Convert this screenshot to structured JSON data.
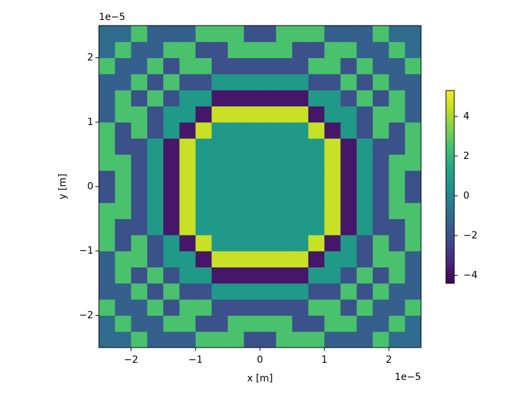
{
  "chart_data": {
    "type": "heatmap",
    "colormap": "viridis",
    "x_label": "x [m]",
    "y_label": "y [m]",
    "x_offset_text": "1e−5",
    "y_offset_text": "1e−5",
    "xlim": [
      -2.5e-05,
      2.5e-05
    ],
    "ylim": [
      -2.5e-05,
      2.5e-05
    ],
    "xticks": [
      {
        "value": -2e-05,
        "label": "−2"
      },
      {
        "value": -1e-05,
        "label": "−1"
      },
      0,
      {
        "value": 1e-05,
        "label": "1"
      },
      {
        "value": 2e-05,
        "label": "2"
      }
    ],
    "yticks": [
      {
        "value": -2e-05,
        "label": "−2"
      },
      {
        "value": -1e-05,
        "label": "−1"
      },
      0,
      {
        "value": 1e-05,
        "label": "1"
      },
      {
        "value": 2e-05,
        "label": "2"
      }
    ],
    "clim": [
      -4.4,
      5.3
    ],
    "cticks": [
      {
        "value": -4,
        "label": "−4"
      },
      {
        "value": -2,
        "label": "−2"
      },
      0,
      2,
      4
    ],
    "x": [
      -2.375e-05,
      -2.125e-05,
      -1.875e-05,
      -1.625e-05,
      -1.375e-05,
      -1.125e-05,
      -8.75e-06,
      -6.25e-06,
      -3.75e-06,
      -1.25e-06,
      1.25e-06,
      3.75e-06,
      6.25e-06,
      8.75e-06,
      1.125e-05,
      1.375e-05,
      1.625e-05,
      1.875e-05,
      2.125e-05,
      2.375e-05
    ],
    "y": [
      -2.375e-05,
      -2.125e-05,
      -1.875e-05,
      -1.625e-05,
      -1.375e-05,
      -1.125e-05,
      -8.75e-06,
      -6.25e-06,
      -3.75e-06,
      -1.25e-06,
      1.25e-06,
      3.75e-06,
      6.25e-06,
      8.75e-06,
      1.125e-05,
      1.375e-05,
      1.625e-05,
      1.875e-05,
      2.125e-05,
      2.375e-05
    ],
    "z": [
      [
        -1,
        -1,
        2.5,
        -1.5,
        -1.5,
        -1.5,
        2.5,
        2.5,
        2.5,
        -2,
        -2,
        2.5,
        2.5,
        2.5,
        -1.5,
        -1.5,
        -1.5,
        2.5,
        -1,
        -1
      ],
      [
        -1,
        2.5,
        -1.5,
        -1.5,
        2.5,
        2.5,
        -2,
        -2,
        2.5,
        2.5,
        2.5,
        2.5,
        -2,
        -2,
        2.5,
        2.5,
        -1.5,
        -1.5,
        2.5,
        -1
      ],
      [
        2.5,
        -1.5,
        -1.5,
        2.5,
        -2,
        2.5,
        2.5,
        -2,
        -2,
        -2,
        -2,
        -2,
        -2,
        2.5,
        2.5,
        -2,
        2.5,
        -1.5,
        -1.5,
        2.5
      ],
      [
        -1.5,
        -1.5,
        2.5,
        -2,
        2.5,
        -2,
        -2,
        0.8,
        0.8,
        0.8,
        0.8,
        0.8,
        0.8,
        -2,
        -2,
        2.5,
        -2,
        2.5,
        -1.5,
        -1.5
      ],
      [
        -1.5,
        2.5,
        -2,
        2.5,
        -2,
        0.8,
        0.8,
        -3.8,
        -3.8,
        -3.8,
        -3.8,
        -3.8,
        -3.8,
        0.8,
        0.8,
        -2,
        2.5,
        -2,
        2.5,
        -1.5
      ],
      [
        -1.5,
        2.5,
        2.5,
        -2,
        0.8,
        0.8,
        -3.8,
        4.5,
        4.5,
        4.5,
        4.5,
        4.5,
        4.5,
        -3.8,
        0.8,
        0.8,
        -2,
        2.5,
        2.5,
        -1.5
      ],
      [
        2.5,
        -2,
        2.5,
        -2,
        0.8,
        -3.8,
        4.5,
        0.8,
        0.8,
        0.8,
        0.8,
        0.8,
        0.8,
        4.5,
        -3.8,
        0.8,
        -2,
        2.5,
        -2,
        2.5
      ],
      [
        2.5,
        -2,
        -2,
        0.8,
        -3.8,
        4.5,
        0.8,
        0.8,
        0.8,
        0.8,
        0.8,
        0.8,
        0.8,
        0.8,
        4.5,
        -3.8,
        0.8,
        -2,
        -2,
        2.5
      ],
      [
        2.5,
        2.5,
        -2,
        0.8,
        -3.8,
        4.5,
        0.8,
        0.8,
        0.8,
        0.8,
        0.8,
        0.8,
        0.8,
        0.8,
        4.5,
        -3.8,
        0.8,
        -2,
        2.5,
        2.5
      ],
      [
        -2,
        2.5,
        -2,
        0.8,
        -3.8,
        4.5,
        0.8,
        0.8,
        0.8,
        0.8,
        0.8,
        0.8,
        0.8,
        0.8,
        4.5,
        -3.8,
        0.8,
        -2,
        2.5,
        -2
      ],
      [
        -2,
        2.5,
        -2,
        0.8,
        -3.8,
        4.5,
        0.8,
        0.8,
        0.8,
        0.8,
        0.8,
        0.8,
        0.8,
        0.8,
        4.5,
        -3.8,
        0.8,
        -2,
        2.5,
        -2
      ],
      [
        2.5,
        2.5,
        -2,
        0.8,
        -3.8,
        4.5,
        0.8,
        0.8,
        0.8,
        0.8,
        0.8,
        0.8,
        0.8,
        0.8,
        4.5,
        -3.8,
        0.8,
        -2,
        2.5,
        2.5
      ],
      [
        2.5,
        -2,
        -2,
        0.8,
        -3.8,
        4.5,
        0.8,
        0.8,
        0.8,
        0.8,
        0.8,
        0.8,
        0.8,
        0.8,
        4.5,
        -3.8,
        0.8,
        -2,
        -2,
        2.5
      ],
      [
        2.5,
        -2,
        2.5,
        -2,
        0.8,
        -3.8,
        4.5,
        0.8,
        0.8,
        0.8,
        0.8,
        0.8,
        0.8,
        4.5,
        -3.8,
        0.8,
        -2,
        2.5,
        -2,
        2.5
      ],
      [
        -1.5,
        2.5,
        2.5,
        -2,
        0.8,
        0.8,
        -3.8,
        4.5,
        4.5,
        4.5,
        4.5,
        4.5,
        4.5,
        -3.8,
        0.8,
        0.8,
        -2,
        2.5,
        2.5,
        -1.5
      ],
      [
        -1.5,
        2.5,
        -2,
        2.5,
        -2,
        0.8,
        0.8,
        -3.8,
        -3.8,
        -3.8,
        -3.8,
        -3.8,
        -3.8,
        0.8,
        0.8,
        -2,
        2.5,
        -2,
        2.5,
        -1.5
      ],
      [
        -1.5,
        -1.5,
        2.5,
        -2,
        2.5,
        -2,
        -2,
        0.8,
        0.8,
        0.8,
        0.8,
        0.8,
        0.8,
        -2,
        -2,
        2.5,
        -2,
        2.5,
        -1.5,
        -1.5
      ],
      [
        2.5,
        -1.5,
        -1.5,
        2.5,
        -2,
        2.5,
        2.5,
        -2,
        -2,
        -2,
        -2,
        -2,
        -2,
        2.5,
        2.5,
        -2,
        2.5,
        -1.5,
        -1.5,
        2.5
      ],
      [
        -1,
        2.5,
        -1.5,
        -1.5,
        2.5,
        2.5,
        -2,
        -2,
        2.5,
        2.5,
        2.5,
        2.5,
        -2,
        -2,
        2.5,
        2.5,
        -1.5,
        -1.5,
        2.5,
        -1
      ],
      [
        -1,
        -1,
        2.5,
        -1.5,
        -1.5,
        -1.5,
        2.5,
        2.5,
        2.5,
        -2,
        -2,
        2.5,
        2.5,
        2.5,
        -1.5,
        -1.5,
        -1.5,
        2.5,
        -1,
        -1
      ]
    ]
  }
}
